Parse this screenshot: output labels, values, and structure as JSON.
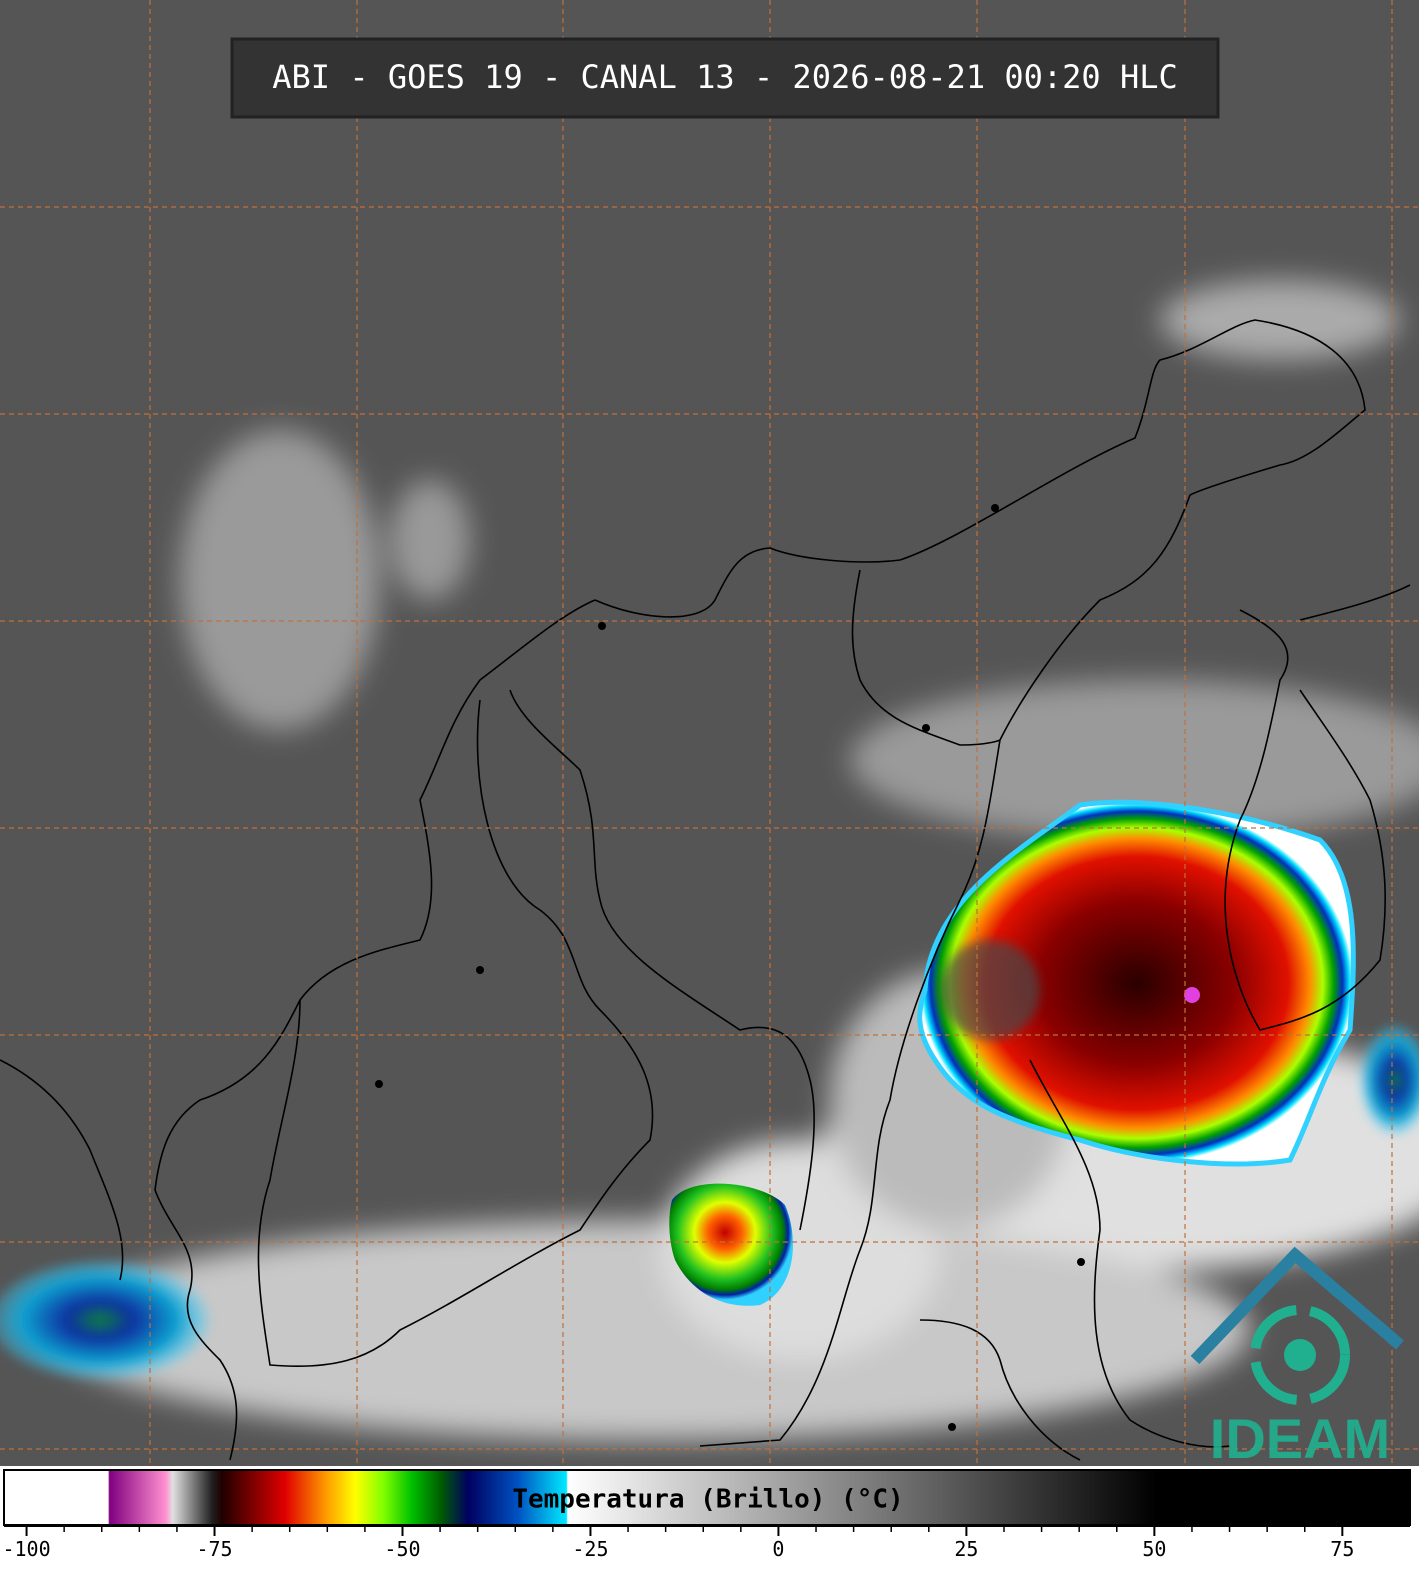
{
  "header": {
    "title": "ABI - GOES 19 - CANAL 13 - 2026-08-21 00:20 HLC"
  },
  "colorbar": {
    "label": "Temperatura (Brillo) (°C)",
    "xlim": [
      -103,
      84
    ],
    "ticks": [
      -100,
      -75,
      -50,
      -25,
      0,
      25,
      50,
      75
    ]
  },
  "logo": {
    "text": "IDEAM"
  }
}
